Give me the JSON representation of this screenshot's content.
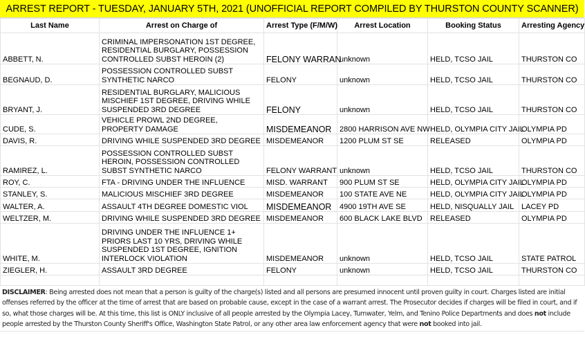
{
  "title": "ARREST REPORT - TUESDAY, JANUARY 5TH, 2021  (UNOFFICIAL REPORT COMPILED BY THURSTON COUNTY SCANNER)",
  "headers": [
    "Last Name",
    "Arrest on Charge of",
    "Arrest Type (F/M/W)",
    "Arrest Location",
    "Booking Status",
    "Arresting Agency"
  ],
  "rows": [
    [
      "ABBETT, N.",
      "CRIMINAL IMPERSONATION 1ST DEGREE, RESIDENTIAL BURGLARY, POSSESSION CONTROLLED SUBST HEROIN (2)",
      "FELONY WARRAN",
      "unknown",
      "HELD, TCSO JAIL",
      "THURSTON CO"
    ],
    [
      "BEGNAUD, D.",
      "POSSESSION CONTROLLED SUBST SYNTHETIC NARCO",
      "FELONY",
      "unknown",
      "HELD, TCSO JAIL",
      "THURSTON CO"
    ],
    [
      "BRYANT, J.",
      "RESIDENTIAL BURGLARY, MALICIOUS MISCHIEF 1ST DEGREE, DRIVING WHILE SUSPENDED 3RD DEGREE",
      "FELONY",
      "unknown",
      "HELD, TCSO JAIL",
      "THURSTON CO"
    ],
    [
      "CUDE, S.",
      "VEHICLE PROWL 2ND DEGREE, PROPERTY DAMAGE",
      "MISDEMEANOR",
      "2800 HARRISON AVE NW",
      "HELD, OLYMPIA CITY JAIL",
      "OLYMPIA PD"
    ],
    [
      "DAVIS, R.",
      "DRIVING WHILE SUSPENDED 3RD DEGREE",
      "MISDEMEANOR",
      "1200 PLUM ST SE",
      "RELEASED",
      "OLYMPIA PD"
    ],
    [
      "RAMIREZ, L.",
      "POSSESSION CONTROLLED SUBST HEROIN, POSSESSION CONTROLLED SUBST SYNTHETIC NARCO",
      "FELONY WARRANT",
      "unknown",
      "HELD, TCSO JAIL",
      "THURSTON CO"
    ],
    [
      "ROY, C.",
      "FTA - DRIVING UNDER THE INFLUENCE",
      "MISD. WARRANT",
      "900 PLUM ST SE",
      "HELD, OLYMPIA CITY JAIL",
      "OLYMPIA PD"
    ],
    [
      "STANLEY, S.",
      "MALICIOUS MISCHIEF 3RD DEGREE",
      "MISDEMEANOR",
      "100 STATE AVE NE",
      "HELD, OLYMPIA CITY JAIL",
      "OLYMPIA PD"
    ],
    [
      "WALTER, A.",
      "ASSAULT 4TH DEGREE DOMESTIC VIOL",
      "MISDEMEANOR",
      "4900 19TH AVE SE",
      "HELD, NISQUALLY JAIL",
      "LACEY PD"
    ],
    [
      "WELTZER, M.",
      "DRIVING WHILE SUSPENDED 3RD DEGREE",
      "MISDEMEANOR",
      "600 BLACK LAKE BLVD",
      "RELEASED",
      "OLYMPIA PD"
    ],
    [
      "WHITE, M.",
      "DRIVING UNDER THE INFLUENCE 1+ PRIORS LAST 10 YRS, DRIVING WHILE SUSPENDED 1ST DEGREE, IGNITION INTERLOCK VIOLATION",
      "MISDEMEANOR",
      "unknown",
      "HELD, TCSO JAIL",
      "STATE PATROL"
    ],
    [
      "ZIEGLER, H.",
      "ASSAULT 3RD DEGREE",
      "FELONY",
      "unknown",
      "HELD, TCSO JAIL",
      "THURSTON CO"
    ],
    [
      "",
      "",
      "",
      "",
      "",
      ""
    ]
  ],
  "disclaimer": {
    "label": "DISCLAIMER",
    "part1": ": Being arrested does not mean that a person is guilty of the charge(s) listed and all persons are presumed innocent until proven guilty in court. Charges listed are initial offenses referred by the officer at the time of arrest that are based on probable cause, except in the case of a warrant arrest. The Prosecutor decides if charges will be filed in court, and if so, what those charges will be. At this time, this list is ONLY inclusive of all people arrested by the Olympia Lacey, Tumwater, Yelm, and Tenino Police Departments and does ",
    "not1": "not",
    "part2": " include people  arrested by the Thurston County Sheriff's Office, Washington State Patrol, or any other area law enforcement agency that were ",
    "not2": "not",
    "part3": " booked into jail."
  },
  "banner_color": "#ffff00"
}
